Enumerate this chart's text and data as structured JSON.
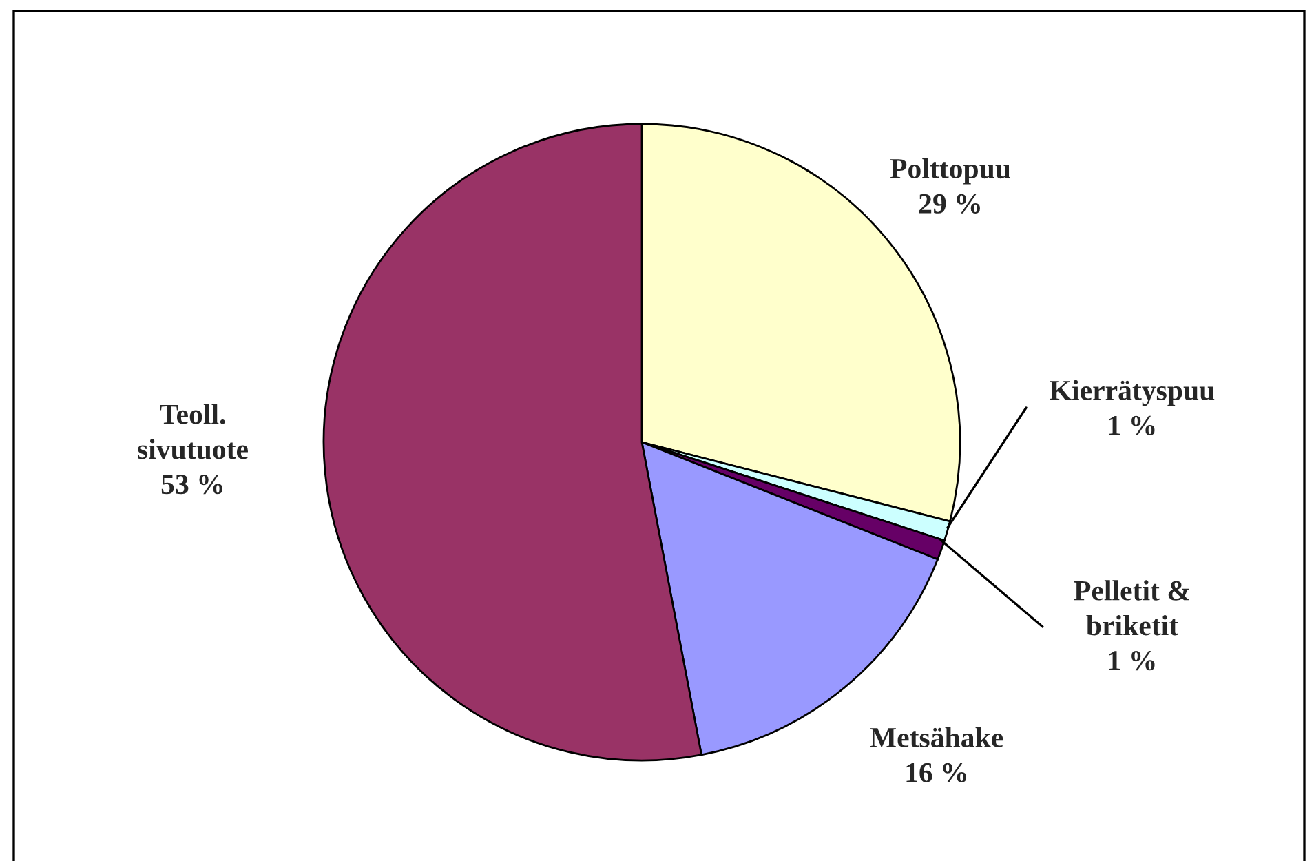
{
  "chart_data": {
    "type": "pie",
    "categories": [
      "Polttopuu",
      "Kierrätyspuu",
      "Pelletit & briketit",
      "Metsähake",
      "Teoll. sivutuote"
    ],
    "values": [
      29,
      1,
      1,
      16,
      53
    ],
    "colors": [
      "#ffffcc",
      "#ccffff",
      "#660066",
      "#9999ff",
      "#993366"
    ],
    "value_labels": [
      "29 %",
      "1 %",
      "1 %",
      "16 %",
      "53 %"
    ],
    "legend": false
  }
}
